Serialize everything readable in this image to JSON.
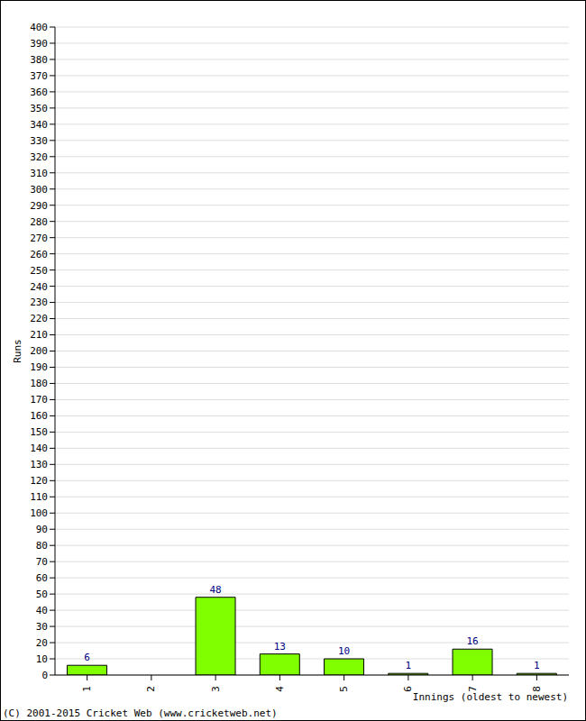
{
  "chart_data": {
    "type": "bar",
    "x_label": "Innings (oldest to newest)",
    "y_label": "Runs",
    "annotations": [
      "(C) 2001-2015 Cricket Web (www.cricketweb.net)"
    ],
    "categories": [
      "1",
      "2",
      "3",
      "4",
      "5",
      "6",
      "7",
      "8"
    ],
    "values": [
      6,
      0,
      48,
      13,
      10,
      1,
      16,
      1
    ],
    "color": "#80ff00",
    "ylim": [
      0,
      400
    ],
    "yticks": [
      0,
      10,
      20,
      30,
      40,
      50,
      60,
      70,
      80,
      90,
      100,
      110,
      120,
      130,
      140,
      150,
      160,
      170,
      180,
      190,
      200,
      210,
      220,
      230,
      240,
      250,
      260,
      270,
      280,
      290,
      300,
      310,
      320,
      330,
      340,
      350,
      360,
      370,
      380,
      390,
      400
    ],
    "grid": true,
    "data_labels": true
  }
}
